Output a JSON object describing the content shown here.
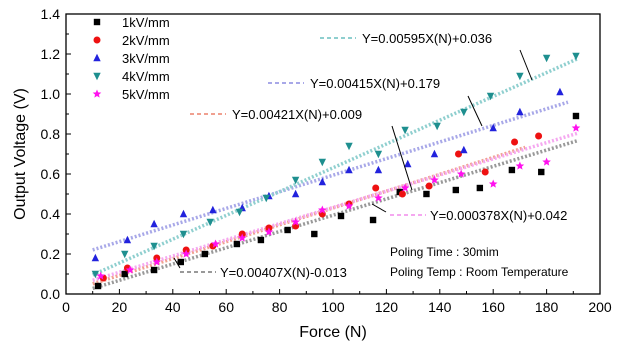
{
  "chart_data": {
    "type": "scatter",
    "xlabel": "Force (N)",
    "ylabel": "Output Voltage (V)",
    "xlim": [
      0,
      200
    ],
    "ylim": [
      0.0,
      1.4
    ],
    "xticks": [
      "0",
      "20",
      "40",
      "60",
      "80",
      "100",
      "120",
      "140",
      "160",
      "180",
      "200"
    ],
    "yticks": [
      "0.0",
      "0.2",
      "0.4",
      "0.6",
      "0.8",
      "1.0",
      "1.2",
      "1.4"
    ],
    "grid": false,
    "legend_position": "top-left",
    "series": [
      {
        "name": "1kV/mm",
        "color": "#000000",
        "marker": "square",
        "x": [
          12,
          22,
          33,
          43,
          52,
          64,
          73,
          83,
          93,
          103,
          115,
          125,
          135,
          146,
          155,
          167,
          178,
          191
        ],
        "y": [
          0.04,
          0.1,
          0.12,
          0.16,
          0.2,
          0.25,
          0.27,
          0.32,
          0.3,
          0.39,
          0.37,
          0.51,
          0.5,
          0.52,
          0.53,
          0.62,
          0.61,
          0.89
        ],
        "fit": {
          "slope": 0.00407,
          "intercept": -0.013,
          "x_range": [
            10,
            192
          ],
          "color": "#999999"
        }
      },
      {
        "name": "2kV/mm",
        "color": "#ee1111",
        "marker": "circle",
        "x": [
          14,
          23,
          34,
          45,
          55,
          66,
          76,
          86,
          96,
          106,
          116,
          126,
          136,
          147,
          157,
          168,
          177
        ],
        "y": [
          0.08,
          0.13,
          0.18,
          0.22,
          0.24,
          0.3,
          0.33,
          0.34,
          0.4,
          0.45,
          0.53,
          0.5,
          0.54,
          0.7,
          0.61,
          0.76,
          0.79
        ],
        "fit": {
          "slope": 0.00421,
          "intercept": 0.009,
          "x_range": [
            10,
            172
          ],
          "color": "#f0a090"
        }
      },
      {
        "name": "3kV/mm",
        "color": "#2222dd",
        "marker": "triangle-up",
        "x": [
          11,
          23,
          33,
          44,
          55,
          66,
          76,
          86,
          96,
          106,
          117,
          128,
          138,
          149,
          160,
          170,
          185
        ],
        "y": [
          0.18,
          0.27,
          0.35,
          0.4,
          0.42,
          0.43,
          0.49,
          0.5,
          0.56,
          0.62,
          0.62,
          0.65,
          0.7,
          0.72,
          0.83,
          0.91,
          1.01
        ],
        "fit": {
          "slope": 0.00415,
          "intercept": 0.179,
          "x_range": [
            10,
            188
          ],
          "color": "#a8a8e8"
        }
      },
      {
        "name": "4kV/mm",
        "color": "#1e8f8f",
        "marker": "triangle-down",
        "x": [
          11,
          22,
          33,
          44,
          54,
          65,
          75,
          86,
          96,
          106,
          117,
          127,
          139,
          149,
          159,
          170,
          180,
          191
        ],
        "y": [
          0.1,
          0.2,
          0.24,
          0.3,
          0.36,
          0.41,
          0.48,
          0.57,
          0.66,
          0.74,
          0.7,
          0.82,
          0.84,
          0.91,
          0.99,
          1.09,
          1.18,
          1.19
        ],
        "fit": {
          "slope": 0.00595,
          "intercept": 0.036,
          "x_range": [
            10,
            192
          ],
          "color": "#8fcfcf"
        }
      },
      {
        "name": "5kV/mm",
        "color": "#ff11ee",
        "marker": "star",
        "x": [
          13,
          24,
          34,
          45,
          56,
          66,
          76,
          86,
          96,
          106,
          117,
          127,
          138,
          148,
          160,
          170,
          180,
          191
        ],
        "y": [
          0.09,
          0.12,
          0.16,
          0.2,
          0.25,
          0.28,
          0.31,
          0.36,
          0.42,
          0.44,
          0.48,
          0.53,
          0.57,
          0.6,
          0.55,
          0.64,
          0.66,
          0.83
        ],
        "fit": {
          "slope": 0.000378,
          "intercept": 0.042,
          "x_range": [
            10,
            192
          ],
          "color": "#f5a8f0"
        }
      }
    ],
    "annotations": [
      {
        "text": "Y=0.00595X(N)+0.036"
      },
      {
        "text": "Y=0.00415X(N)+0.179"
      },
      {
        "text": "Y=0.00421X(N)+0.009"
      },
      {
        "text": "Y=0.000378X(N)+0.042"
      },
      {
        "text": "Y=0.00407X(N)-0.013"
      }
    ],
    "notes": [
      "Poling Time : 30mim",
      "Poling Temp : Room Temperature"
    ]
  }
}
